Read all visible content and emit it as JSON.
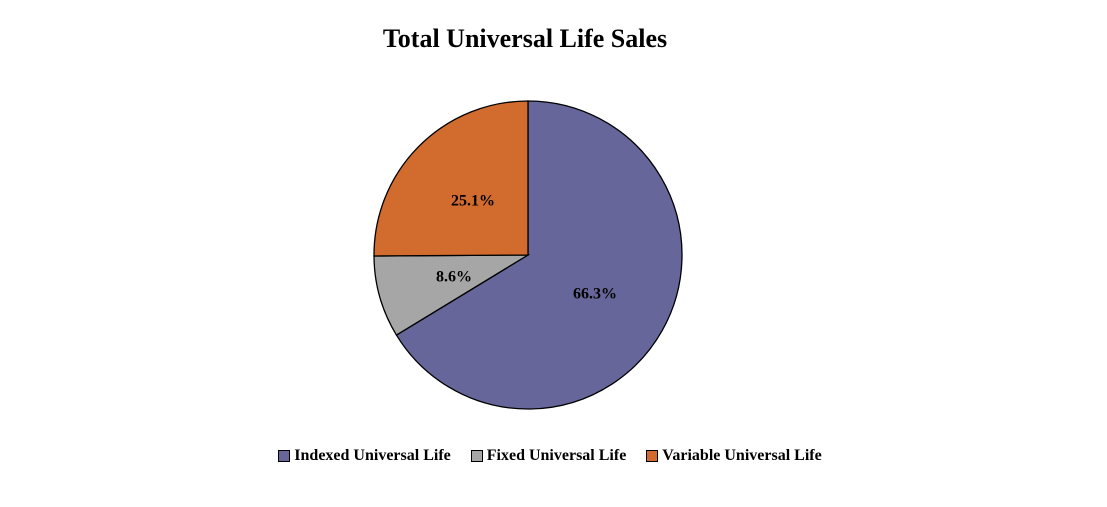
{
  "chart_data": {
    "type": "pie",
    "title": "Total Universal Life Sales",
    "series": [
      {
        "name": "Indexed Universal Life",
        "value": 66.3,
        "label": "66.3%",
        "color": "#66669A"
      },
      {
        "name": "Fixed Universal Life",
        "value": 8.6,
        "label": "8.6%",
        "color": "#A6A6A6"
      },
      {
        "name": "Variable Universal Life",
        "value": 25.1,
        "label": "25.1%",
        "color": "#D16B2E"
      }
    ],
    "legend": "bottom"
  }
}
